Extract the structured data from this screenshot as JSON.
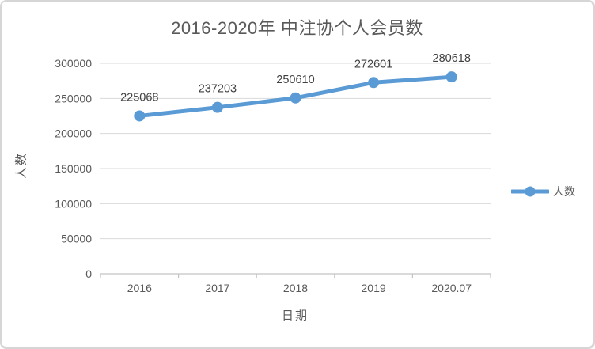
{
  "chart_data": {
    "type": "line",
    "title": "2016-2020年 中注协个人会员数",
    "xlabel": "日期",
    "ylabel": "人数",
    "categories": [
      "2016",
      "2017",
      "2018",
      "2019",
      "2020.07"
    ],
    "series": [
      {
        "name": "人数",
        "values": [
          225068,
          237203,
          250610,
          272601,
          280618
        ]
      }
    ],
    "data_labels_shown": true,
    "ylim": [
      0,
      300000
    ],
    "ytick_step": 50000,
    "ytick_labels": [
      "0",
      "50000",
      "100000",
      "150000",
      "200000",
      "250000",
      "300000"
    ],
    "grid": true,
    "legend_position": "right",
    "colors": {
      "line": "#5b9bd5",
      "grid": "#d9d9d9",
      "axis": "#c3c3c3",
      "tick_text": "#595959",
      "data_label_text": "#404040",
      "title_text": "#595959",
      "frame_border": "#d6d6d6"
    }
  }
}
